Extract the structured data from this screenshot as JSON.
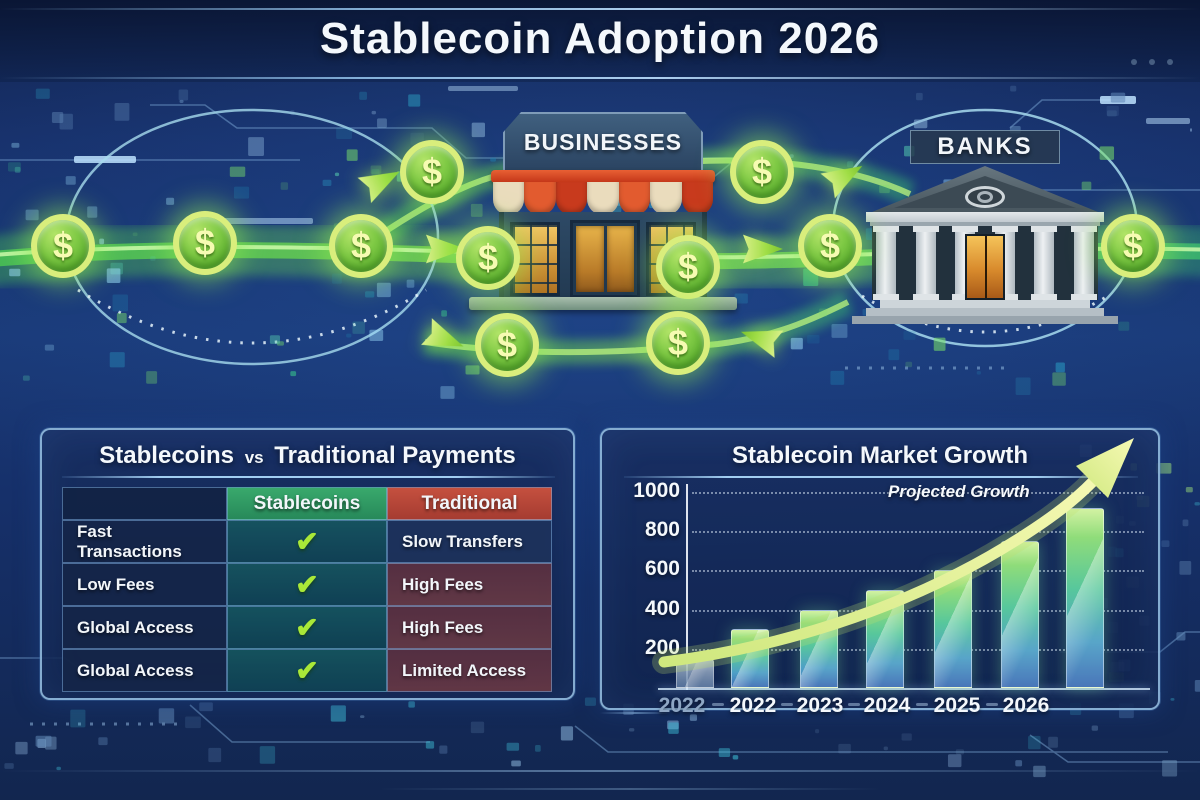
{
  "title": "Stablecoin Adoption 2026",
  "flow": {
    "businesses_label": "BUSINESSES",
    "banks_label": "BANKS",
    "coin_symbol": "$"
  },
  "comparison": {
    "title": {
      "left": "Stablecoins",
      "vs": "vs",
      "right": "Traditional Payments"
    },
    "columns": {
      "feature": "",
      "stablecoins": "Stablecoins",
      "traditional": "Traditional"
    },
    "check_symbol": "✔",
    "rows": [
      {
        "feature": "Fast Transactions",
        "stablecoins": "check",
        "traditional": "Slow Transfers"
      },
      {
        "feature": "Low Fees",
        "stablecoins": "check",
        "traditional": "High Fees"
      },
      {
        "feature": "Global Access",
        "stablecoins": "check",
        "traditional": "High Fees"
      },
      {
        "feature": "Global Access",
        "stablecoins": "check",
        "traditional": "Limited Access"
      }
    ]
  },
  "chart_data": {
    "type": "bar",
    "title": "Stablecoin Market Growth",
    "annotation": "Projected Growth",
    "categories": [
      "2022",
      "2022",
      "2023",
      "2024",
      "2025",
      "2026",
      ""
    ],
    "values": [
      150,
      300,
      400,
      500,
      600,
      750,
      920
    ],
    "yticks": [
      200,
      400,
      600,
      800,
      1000
    ],
    "ylim": [
      0,
      1050
    ],
    "xlabel": "",
    "ylabel": "",
    "grid": "horizontal-dotted",
    "legend": "none",
    "notes": "First bar and first year label are muted grey; seventh tall bar is unlabeled projected growth; curved yellow arrow sweeps up to the right."
  },
  "colors": {
    "background_navy": "#162c5e",
    "accent_cyan": "#9fd4ee",
    "title_text": "#f4f8fc",
    "coin_green": "#6fc23a",
    "coin_ring": "#d9ee7c",
    "flow_arrow_green": "#9fdd45",
    "check_green": "#a9e838",
    "header_green": "#2e9e63",
    "header_red": "#bf4a3c",
    "bar_top_green": "#cdf0a0",
    "bar_bottom_blue": "#3e6eb5",
    "growth_arrow_yellow": "#eef29a",
    "awning_red": "#d9472b",
    "awning_cream": "#eadcbd",
    "muted_label": "#8ea6c4"
  }
}
